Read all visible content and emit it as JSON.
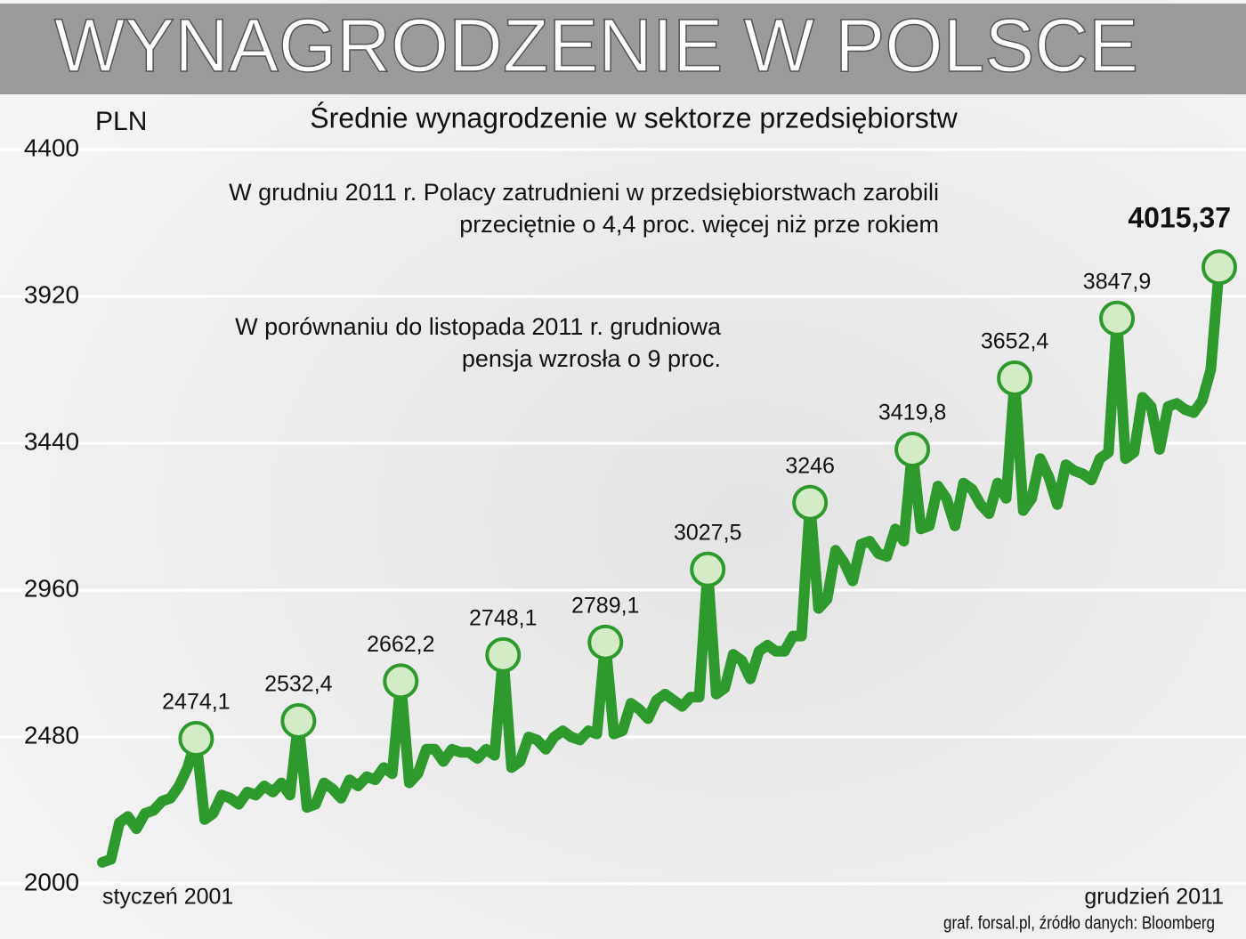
{
  "chart_data": {
    "type": "line",
    "title": "WYNAGRODZENIE W POLSCE",
    "subtitle": "Średnie wynagrodzenie w sektorze przedsiębiorstw",
    "y_label": "PLN",
    "annotations": [
      [
        "W grudniu 2011 r. Polacy zatrudnieni w przedsiębiorstwach zarobili",
        "przeciętnie o 4,4 proc. więcej niż prze rokiem"
      ],
      [
        "W porównaniu do listopada 2011 r. grudniowa",
        "pensja wzrosła o 9 proc."
      ]
    ],
    "source": "graf. forsal.pl, źródło danych: Bloomberg",
    "categories": [
      "styczeń 2001",
      null,
      null,
      null,
      null,
      null,
      null,
      null,
      null,
      null,
      null,
      null,
      null,
      null,
      null,
      null,
      null,
      null,
      null,
      null,
      null,
      null,
      null,
      null,
      null,
      null,
      null,
      null,
      null,
      null,
      null,
      null,
      null,
      null,
      null,
      null,
      null,
      null,
      null,
      null,
      null,
      null,
      null,
      null,
      null,
      null,
      null,
      null,
      null,
      null,
      null,
      null,
      null,
      null,
      null,
      null,
      null,
      null,
      null,
      null,
      null,
      null,
      null,
      null,
      null,
      null,
      null,
      null,
      null,
      null,
      null,
      null,
      null,
      null,
      null,
      null,
      null,
      null,
      null,
      null,
      null,
      null,
      null,
      null,
      null,
      null,
      null,
      null,
      null,
      null,
      null,
      null,
      null,
      null,
      null,
      null,
      null,
      null,
      null,
      null,
      null,
      null,
      null,
      null,
      null,
      null,
      null,
      null,
      null,
      null,
      null,
      null,
      null,
      null,
      null,
      null,
      null,
      null,
      null,
      null,
      null,
      null,
      null,
      null,
      null,
      null,
      null,
      null,
      null,
      null,
      null,
      "grudzień 2011"
    ],
    "series": [
      {
        "color": "#2e9a2e",
        "values": [
          2070,
          2080,
          2200,
          2220,
          2180,
          2230,
          2240,
          2270,
          2280,
          2320,
          2380,
          2474.1,
          2210,
          2230,
          2290,
          2280,
          2260,
          2300,
          2290,
          2320,
          2300,
          2330,
          2290,
          2532.4,
          2250,
          2260,
          2330,
          2310,
          2280,
          2340,
          2320,
          2350,
          2340,
          2380,
          2360,
          2662.2,
          2330,
          2360,
          2440,
          2440,
          2400,
          2440,
          2430,
          2430,
          2410,
          2440,
          2420,
          2748.1,
          2380,
          2400,
          2480,
          2470,
          2440,
          2480,
          2500,
          2480,
          2470,
          2500,
          2490,
          2789.1,
          2490,
          2500,
          2590,
          2570,
          2540,
          2600,
          2620,
          2600,
          2580,
          2610,
          2610,
          3027.5,
          2620,
          2640,
          2750,
          2730,
          2670,
          2760,
          2780,
          2760,
          2760,
          2810,
          2810,
          3246,
          2900,
          2930,
          3090,
          3050,
          2990,
          3110,
          3120,
          3080,
          3070,
          3160,
          3120,
          3419.8,
          3160,
          3170,
          3300,
          3260,
          3170,
          3310,
          3290,
          3240,
          3210,
          3310,
          3260,
          3652.4,
          3220,
          3260,
          3390,
          3330,
          3240,
          3370,
          3350,
          3340,
          3320,
          3390,
          3410,
          3847.9,
          3390,
          3410,
          3590,
          3560,
          3420,
          3560,
          3570,
          3550,
          3540,
          3580,
          3680,
          4015.37
        ],
        "value_labels": [
          null,
          null,
          null,
          null,
          null,
          null,
          null,
          null,
          null,
          null,
          null,
          "2474,1",
          null,
          null,
          null,
          null,
          null,
          null,
          null,
          null,
          null,
          null,
          null,
          "2532,4",
          null,
          null,
          null,
          null,
          null,
          null,
          null,
          null,
          null,
          null,
          null,
          "2662,2",
          null,
          null,
          null,
          null,
          null,
          null,
          null,
          null,
          null,
          null,
          null,
          "2748,1",
          null,
          null,
          null,
          null,
          null,
          null,
          null,
          null,
          null,
          null,
          null,
          "2789,1",
          null,
          null,
          null,
          null,
          null,
          null,
          null,
          null,
          null,
          null,
          null,
          "3027,5",
          null,
          null,
          null,
          null,
          null,
          null,
          null,
          null,
          null,
          null,
          null,
          "3246",
          null,
          null,
          null,
          null,
          null,
          null,
          null,
          null,
          null,
          null,
          null,
          "3419,8",
          null,
          null,
          null,
          null,
          null,
          null,
          null,
          null,
          null,
          null,
          null,
          "3652,4",
          null,
          null,
          null,
          null,
          null,
          null,
          null,
          null,
          null,
          null,
          null,
          "3847,9",
          null,
          null,
          null,
          null,
          null,
          null,
          null,
          null,
          null,
          null,
          null,
          "4015,37"
        ]
      }
    ],
    "ylim": [
      2000,
      4400
    ],
    "yticks": [
      2000,
      2480,
      2960,
      3440,
      3920,
      4400
    ],
    "grid": true
  }
}
